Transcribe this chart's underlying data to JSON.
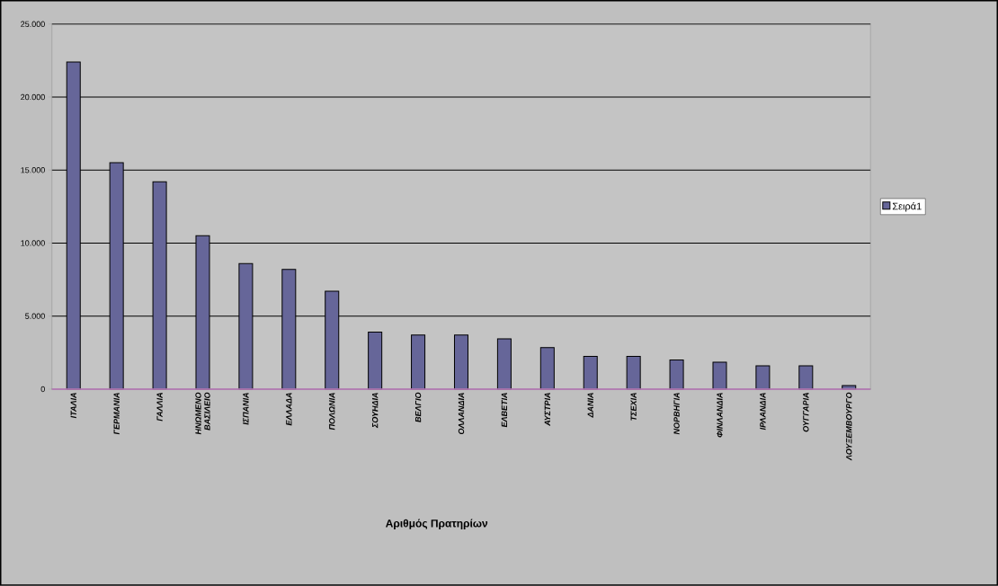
{
  "chart_data": {
    "type": "bar",
    "annotations": [
      "Αριθμός Πρατηρίων"
    ],
    "categories": [
      "ΙΤΑΛΙΑ",
      "ΓΕΡΜΑΝΙΑ",
      "ΓΑΛΛΙΑ",
      "ΗΝΩΜΕΝΟ ΒΑΣΙΛΕΙΟ",
      "ΙΣΠΑΝΙΑ",
      "ΕΛΛΑΔΑ",
      "ΠΟΛΩΝΙΑ",
      "ΣΟΥΗΔΙΑ",
      "ΒΕΛΓΙΟ",
      "ΟΛΛΑΝΔΙΑ",
      "ΕΛΒΕΤΙΑ",
      "ΑΥΣΤΡΙΑ",
      "ΔΑΝΙΑ",
      "ΤΣΕΧΙΑ",
      "ΝΟΡΒΗΓΙΑ",
      "ΦΙΝΛΑΝΔΙΑ",
      "ΙΡΛΑΝΔΙΑ",
      "ΟΥΓΓΑΡΙΑ",
      "ΛΟΥΞΕΜΒΟΥΡΓΟ"
    ],
    "series": [
      {
        "name": "Σειρά1",
        "color": "#666699",
        "values": [
          22400,
          15500,
          14200,
          10500,
          8600,
          8200,
          6700,
          3900,
          3700,
          3700,
          3450,
          2850,
          2250,
          2250,
          2000,
          1850,
          1600,
          1600,
          250
        ]
      }
    ],
    "ylim": [
      0,
      25000
    ],
    "yticks": [
      0,
      {
        "value": 5000,
        "label": "5.000"
      },
      {
        "value": 10000,
        "label": "10.000"
      },
      {
        "value": 15000,
        "label": "15.000"
      },
      {
        "value": 20000,
        "label": "20.000"
      },
      {
        "value": 25000,
        "label": "25.000"
      }
    ],
    "grid": "y",
    "legend": "right"
  }
}
